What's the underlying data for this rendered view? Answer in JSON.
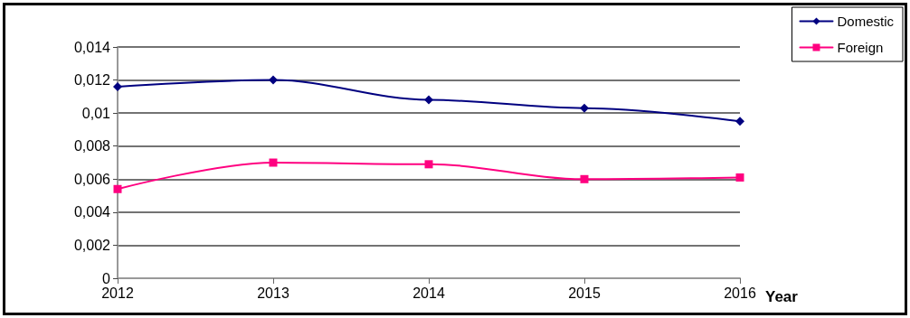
{
  "chart_data": {
    "type": "line",
    "xlabel": "Year",
    "categories": [
      "2012",
      "2013",
      "2014",
      "2015",
      "2016"
    ],
    "series": [
      {
        "name": "Domestic",
        "color": "#000080",
        "marker": "diamond",
        "values": [
          0.0116,
          0.012,
          0.0108,
          0.0103,
          0.0095
        ]
      },
      {
        "name": "Foreign",
        "color": "#ff0080",
        "marker": "square",
        "values": [
          0.0054,
          0.007,
          0.0069,
          0.006,
          0.0061
        ]
      }
    ],
    "ylim": [
      0,
      0.014
    ],
    "yticks": [
      0,
      {
        "value": 0.002,
        "label": "0,002"
      },
      {
        "value": 0.004,
        "label": "0,004"
      },
      {
        "value": 0.006,
        "label": "0,006"
      },
      {
        "value": 0.008,
        "label": "0,008"
      },
      {
        "value": 0.01,
        "label": "0,01"
      },
      {
        "value": 0.012,
        "label": "0,012"
      },
      {
        "value": 0.014,
        "label": "0,014"
      }
    ],
    "grid": "y",
    "legend": "top right",
    "line_style": "solid"
  }
}
